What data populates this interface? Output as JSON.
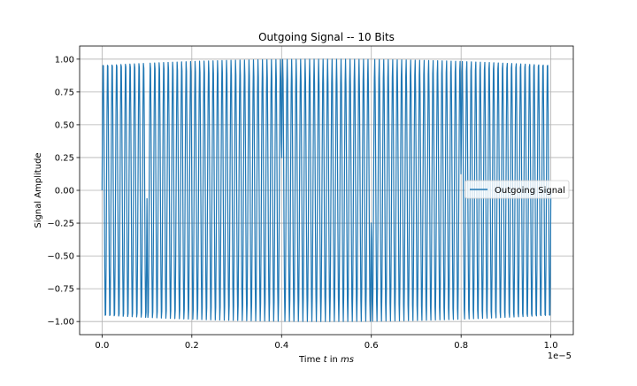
{
  "chart_data": {
    "type": "line",
    "title": "Outgoing Signal -- 10 Bits",
    "xlabel_parts": [
      "Time ",
      "t",
      " in ",
      "ms"
    ],
    "ylabel": "Signal Amplitude",
    "x_offset_text": "1e−5",
    "xlim": [
      -5e-07,
      1.05e-05
    ],
    "ylim": [
      -1.1,
      1.1
    ],
    "grid": true,
    "legend_position": "center-right",
    "xticks": [
      {
        "value": 0.0,
        "label": "0.0"
      },
      {
        "value": 2e-06,
        "label": "0.2"
      },
      {
        "value": 4e-06,
        "label": "0.4"
      },
      {
        "value": 6e-06,
        "label": "0.6"
      },
      {
        "value": 8e-06,
        "label": "0.8"
      },
      {
        "value": 1e-05,
        "label": "1.0"
      }
    ],
    "yticks": [
      {
        "value": 1.0,
        "label": "1.00"
      },
      {
        "value": 0.75,
        "label": "0.75"
      },
      {
        "value": 0.5,
        "label": "0.50"
      },
      {
        "value": 0.25,
        "label": "0.25"
      },
      {
        "value": 0.0,
        "label": "0.00"
      },
      {
        "value": -0.25,
        "label": "−0.25"
      },
      {
        "value": -0.5,
        "label": "−0.50"
      },
      {
        "value": -0.75,
        "label": "−0.75"
      },
      {
        "value": -1.0,
        "label": "−1.00"
      }
    ],
    "series": [
      {
        "name": "Outgoing Signal",
        "color": "#1f77b4",
        "x_start": 0.0,
        "x_end": 1e-05,
        "carrier_frequency_hz": 10000000,
        "bit_phases_deg": [
          0,
          180,
          180,
          180,
          0,
          0,
          180,
          180,
          0,
          0
        ]
      }
    ]
  }
}
